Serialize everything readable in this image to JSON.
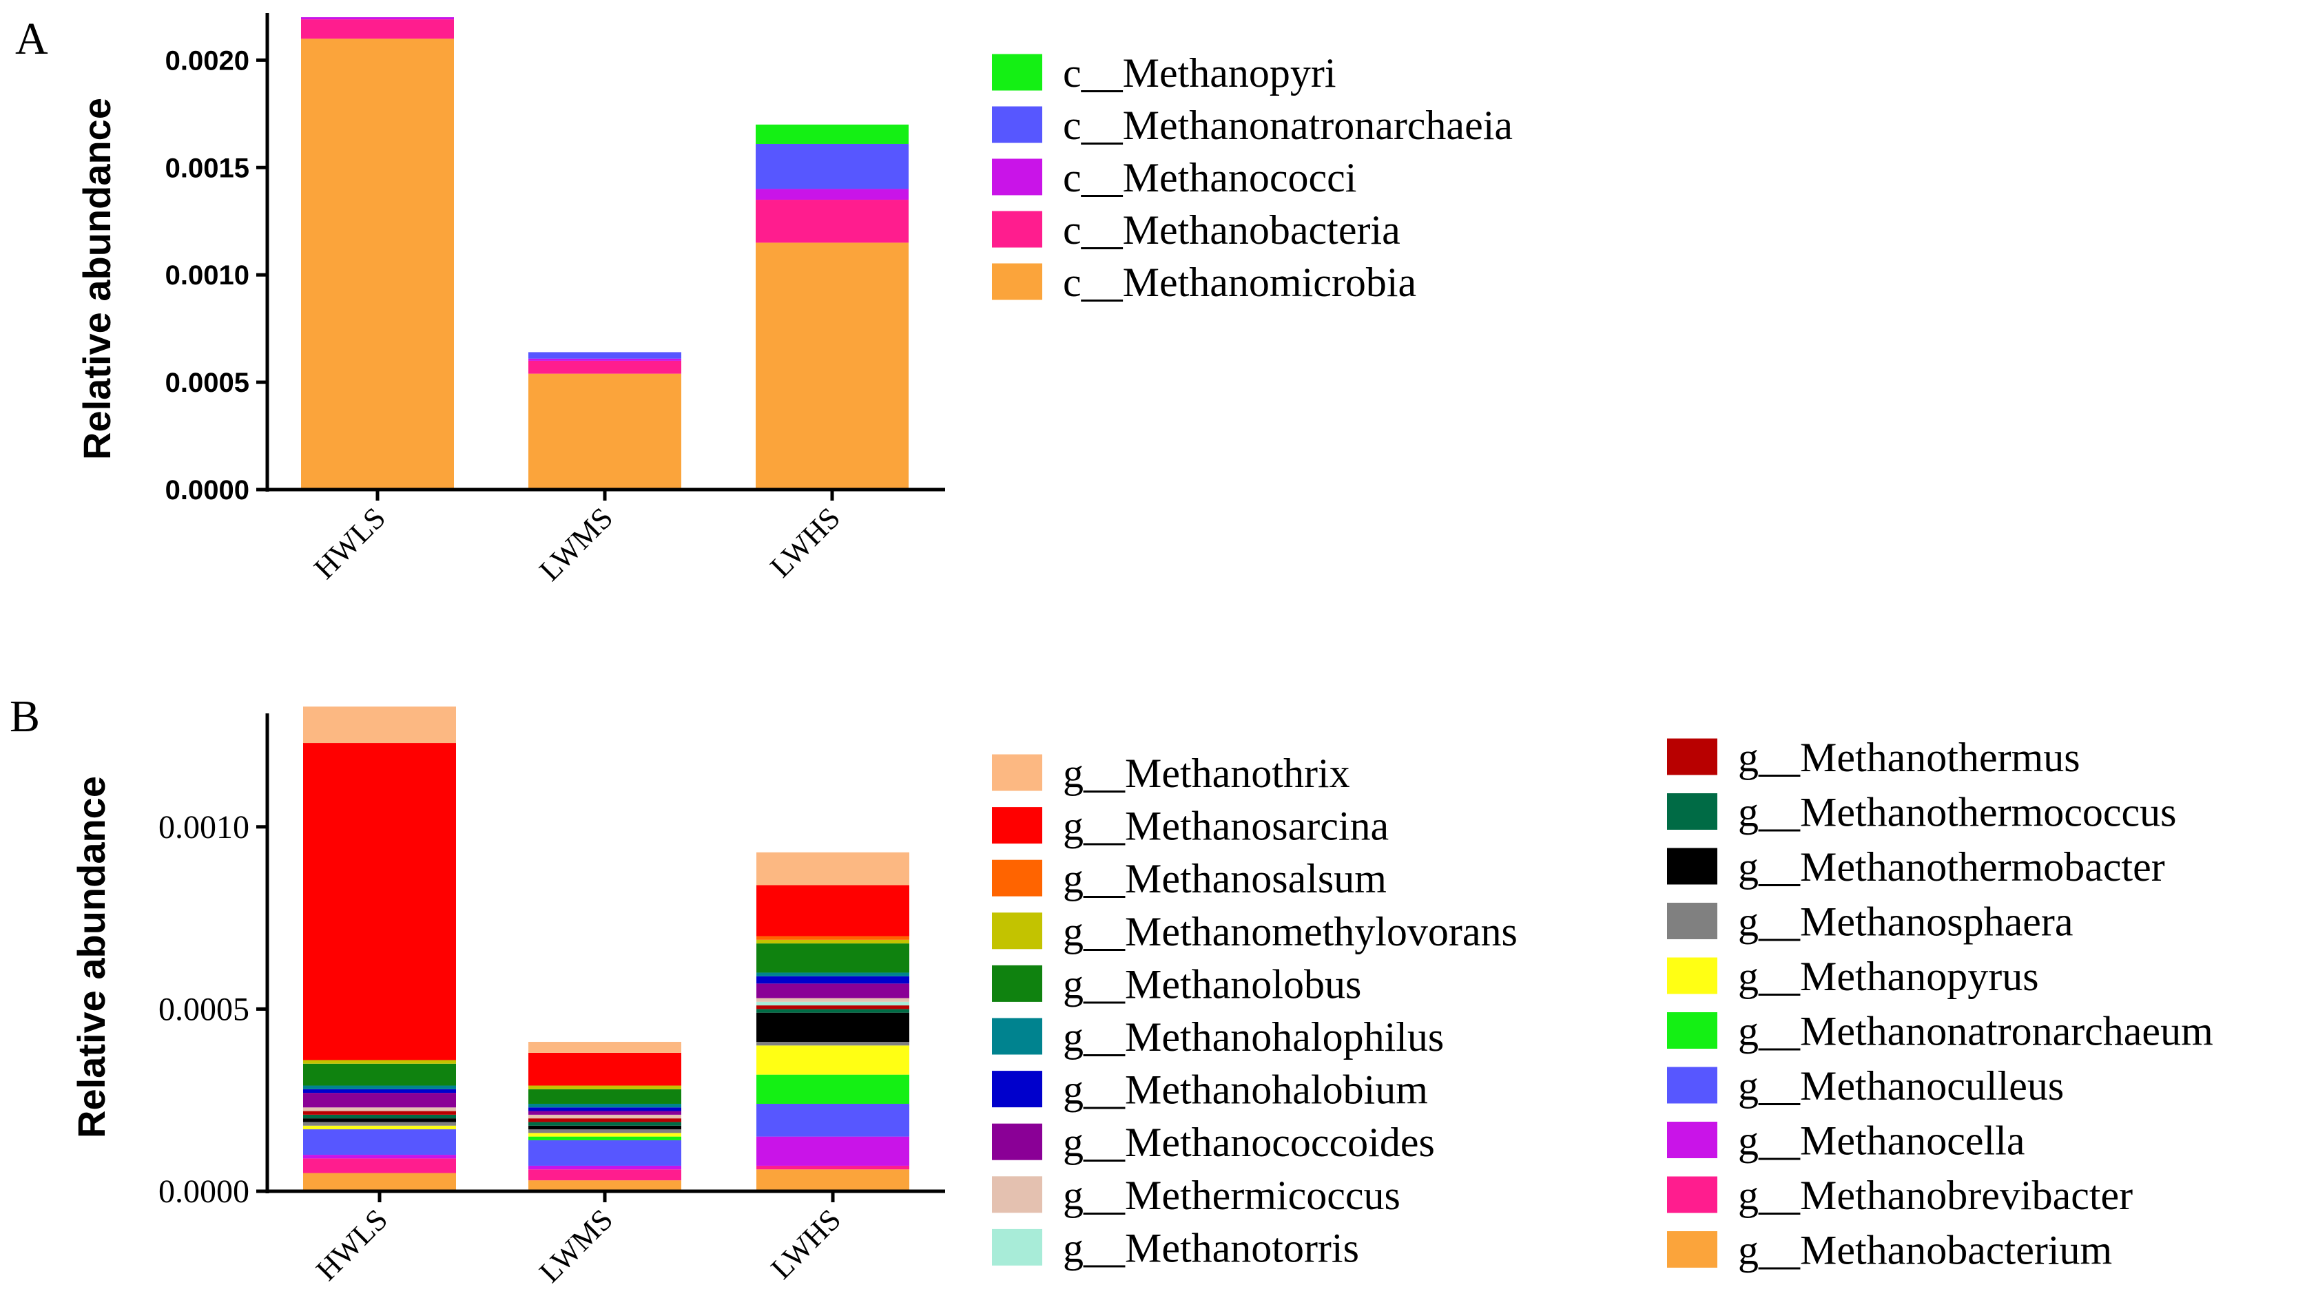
{
  "chart_data": [
    {
      "panel": "A",
      "type": "bar",
      "stacked": true,
      "title": "",
      "xlabel": "",
      "ylabel": "Relative abundance",
      "ylim": [
        0,
        0.0022
      ],
      "yticks": [
        "0.0000",
        "0.0005",
        "0.0010",
        "0.0015",
        "0.0020"
      ],
      "tick_values": [
        0,
        0.0005,
        0.001,
        0.0015,
        0.002
      ],
      "categories": [
        "HWLS",
        "LWMS",
        "LWHS"
      ],
      "series": [
        {
          "name": "c__Methanomicrobia",
          "color": "#FBA43B",
          "values": [
            0.0021,
            0.00054,
            0.00115
          ]
        },
        {
          "name": "c__Methanobacteria",
          "color": "#FF1D8E",
          "values": [
            9e-05,
            6e-05,
            0.0002
          ]
        },
        {
          "name": "c__Methanococci",
          "color": "#C914E8",
          "values": [
            1e-05,
            1e-05,
            5e-05
          ]
        },
        {
          "name": "c__Methanonatronarchaeia",
          "color": "#5757FF",
          "values": [
            0,
            3e-05,
            0.00021
          ]
        },
        {
          "name": "c__Methanopyri",
          "color": "#14F014",
          "values": [
            0,
            0,
            9e-05
          ]
        }
      ],
      "legend_order": [
        "c__Methanopyri",
        "c__Methanonatronarchaeia",
        "c__Methanococci",
        "c__Methanobacteria",
        "c__Methanomicrobia"
      ]
    },
    {
      "panel": "B",
      "type": "bar",
      "stacked": true,
      "title": "",
      "xlabel": "",
      "ylabel": "Relative abundance",
      "ylim": [
        0,
        0.0013
      ],
      "yticks": [
        "0.0000",
        "0.0005",
        "0.0010"
      ],
      "tick_values": [
        0,
        0.0005,
        0.001
      ],
      "categories": [
        "HWLS",
        "LWMS",
        "LWHS"
      ],
      "series": [
        {
          "name": "g__Methanobacterium",
          "color": "#FBA43B",
          "values": [
            5e-05,
            3e-05,
            6e-05
          ]
        },
        {
          "name": "g__Methanobrevibacter",
          "color": "#FF1D8E",
          "values": [
            4e-05,
            3e-05,
            1e-05
          ]
        },
        {
          "name": "g__Methanocella",
          "color": "#C914E8",
          "values": [
            1e-05,
            1e-05,
            8e-05
          ]
        },
        {
          "name": "g__Methanoculleus",
          "color": "#5757FF",
          "values": [
            7e-05,
            7e-05,
            9e-05
          ]
        },
        {
          "name": "g__Methanonatronarchaeum",
          "color": "#14F014",
          "values": [
            0,
            1e-05,
            8e-05
          ]
        },
        {
          "name": "g__Methanopyrus",
          "color": "#FFFF14",
          "values": [
            1e-05,
            1e-05,
            8e-05
          ]
        },
        {
          "name": "g__Methanosphaera",
          "color": "#808080",
          "values": [
            1e-05,
            1e-05,
            1e-05
          ]
        },
        {
          "name": "g__Methanothermobacter",
          "color": "#000000",
          "values": [
            1e-05,
            1e-05,
            8e-05
          ]
        },
        {
          "name": "g__Methanothermococcus",
          "color": "#006B45",
          "values": [
            1e-05,
            1e-05,
            1e-05
          ]
        },
        {
          "name": "g__Methanothermus",
          "color": "#B80000",
          "values": [
            1e-05,
            1e-05,
            1e-05
          ]
        },
        {
          "name": "g__Methanotorris",
          "color": "#A8ECD8",
          "values": [
            0,
            0,
            1e-05
          ]
        },
        {
          "name": "g__Methermicoccus",
          "color": "#E4C1B0",
          "values": [
            1e-05,
            1e-05,
            1e-05
          ]
        },
        {
          "name": "g__Methanococcoides",
          "color": "#8A0096",
          "values": [
            4e-05,
            1e-05,
            4e-05
          ]
        },
        {
          "name": "g__Methanohalobium",
          "color": "#0000CC",
          "values": [
            1e-05,
            1e-05,
            2e-05
          ]
        },
        {
          "name": "g__Methanohalophilus",
          "color": "#00838F",
          "values": [
            1e-05,
            1e-05,
            1e-05
          ]
        },
        {
          "name": "g__Methanolobus",
          "color": "#0F820F",
          "values": [
            6e-05,
            4e-05,
            8e-05
          ]
        },
        {
          "name": "g__Methanomethylovorans",
          "color": "#C3C300",
          "values": [
            1e-05,
            1e-05,
            1e-05
          ]
        },
        {
          "name": "g__Methanosalsum",
          "color": "#FF6400",
          "values": [
            0,
            0,
            1e-05
          ]
        },
        {
          "name": "g__Methanosarcina",
          "color": "#FF0000",
          "values": [
            0.00087,
            9e-05,
            0.00014
          ]
        },
        {
          "name": "g__Methanothrix",
          "color": "#FCB882",
          "values": [
            0.0001,
            3e-05,
            9e-05
          ]
        }
      ],
      "legend_col1": [
        "g__Methanothrix",
        "g__Methanosarcina",
        "g__Methanosalsum",
        "g__Methanomethylovorans",
        "g__Methanolobus",
        "g__Methanohalophilus",
        "g__Methanohalobium",
        "g__Methanococcoides",
        "g__Methermicoccus",
        "g__Methanotorris"
      ],
      "legend_col2": [
        "g__Methanothermus",
        "g__Methanothermococcus",
        "g__Methanothermobacter",
        "g__Methanosphaera",
        "g__Methanopyrus",
        "g__Methanonatronarchaeum",
        "g__Methanoculleus",
        "g__Methanocella",
        "g__Methanobrevibacter",
        "g__Methanobacterium"
      ]
    }
  ],
  "panels": {
    "A": {
      "letter": "A"
    },
    "B": {
      "letter": "B"
    }
  }
}
